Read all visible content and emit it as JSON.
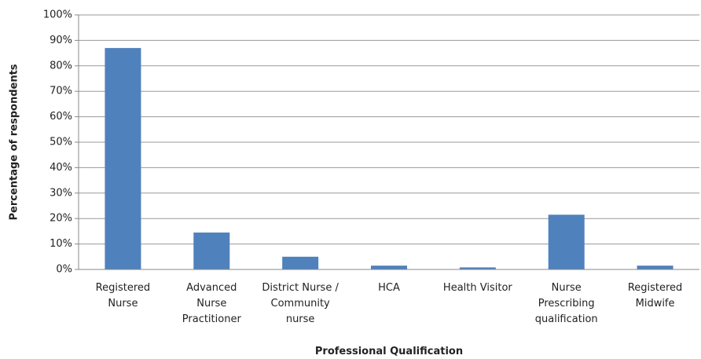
{
  "chart_data": {
    "type": "bar",
    "x_label": "Professional Qualification",
    "y_label": "Percentage of respondents",
    "categories": [
      "Registered Nurse",
      "Advanced Nurse Practitioner",
      "District Nurse / Community nurse",
      "HCA",
      "Health Visitor",
      "Nurse Prescribing qualification",
      "Registered Midwife"
    ],
    "values": [
      87,
      14.5,
      5,
      1.5,
      0.8,
      21.5,
      1.5
    ],
    "color": "#4f81bd",
    "ylim": [
      0,
      100
    ],
    "yticks": [
      {
        "value": 0,
        "label": "0%"
      },
      {
        "value": 10,
        "label": "10%"
      },
      {
        "value": 20,
        "label": "20%"
      },
      {
        "value": 30,
        "label": "30%"
      },
      {
        "value": 40,
        "label": "40%"
      },
      {
        "value": 50,
        "label": "50%"
      },
      {
        "value": 60,
        "label": "60%"
      },
      {
        "value": 70,
        "label": "70%"
      },
      {
        "value": 80,
        "label": "80%"
      },
      {
        "value": 90,
        "label": "90%"
      },
      {
        "value": 100,
        "label": "100%"
      }
    ],
    "grid": true
  }
}
